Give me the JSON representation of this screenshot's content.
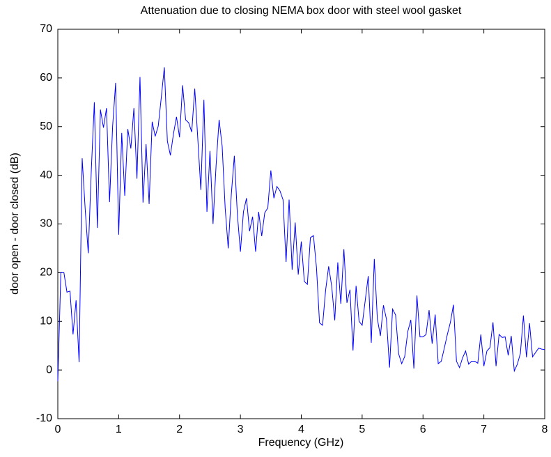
{
  "chart_data": {
    "type": "line",
    "title": "Attenuation due to closing NEMA box door with steel wool gasket",
    "xlabel": "Frequency (GHz)",
    "ylabel": "door open - door closed (dB)",
    "xlim": [
      0,
      8
    ],
    "ylim": [
      -10,
      70
    ],
    "xticks": [
      0,
      1,
      2,
      3,
      4,
      5,
      6,
      7,
      8
    ],
    "yticks": [
      -10,
      0,
      10,
      20,
      30,
      40,
      50,
      60,
      70
    ],
    "grid": false,
    "series": [
      {
        "name": "attenuation",
        "color": "#0000ff",
        "x": [
          0,
          0.05,
          0.1,
          0.15,
          0.2,
          0.25,
          0.3,
          0.35,
          0.4,
          0.45,
          0.5,
          0.55,
          0.6,
          0.65,
          0.7,
          0.75,
          0.8,
          0.85,
          0.9,
          0.95,
          1,
          1.05,
          1.1,
          1.15,
          1.2,
          1.25,
          1.3,
          1.35,
          1.4,
          1.45,
          1.5,
          1.55,
          1.6,
          1.65,
          1.7,
          1.75,
          1.8,
          1.85,
          1.9,
          1.95,
          2,
          2.05,
          2.1,
          2.15,
          2.2,
          2.25,
          2.3,
          2.35,
          2.4,
          2.45,
          2.5,
          2.55,
          2.6,
          2.65,
          2.7,
          2.75,
          2.8,
          2.85,
          2.9,
          2.95,
          3,
          3.05,
          3.1,
          3.15,
          3.2,
          3.25,
          3.3,
          3.35,
          3.4,
          3.45,
          3.5,
          3.55,
          3.6,
          3.65,
          3.7,
          3.75,
          3.8,
          3.85,
          3.9,
          3.95,
          4,
          4.05,
          4.1,
          4.15,
          4.2,
          4.25,
          4.3,
          4.35,
          4.4,
          4.45,
          4.5,
          4.55,
          4.6,
          4.65,
          4.7,
          4.75,
          4.8,
          4.85,
          4.9,
          4.95,
          5,
          5.05,
          5.1,
          5.15,
          5.2,
          5.25,
          5.3,
          5.35,
          5.4,
          5.45,
          5.5,
          5.55,
          5.6,
          5.65,
          5.7,
          5.75,
          5.8,
          5.85,
          5.9,
          5.95,
          6,
          6.05,
          6.1,
          6.15,
          6.2,
          6.25,
          6.3,
          6.35,
          6.4,
          6.45,
          6.5,
          6.55,
          6.6,
          6.65,
          6.7,
          6.75,
          6.8,
          6.85,
          6.9,
          6.95,
          7,
          7.05,
          7.1,
          7.15,
          7.2,
          7.25,
          7.3,
          7.35,
          7.4,
          7.45,
          7.5,
          7.55,
          7.6,
          7.65,
          7.7,
          7.75,
          7.8,
          7.85,
          7.9,
          7.95,
          8
        ],
        "values": [
          -2.3,
          20,
          20,
          16,
          16.2,
          7.3,
          14.3,
          1.6,
          43.5,
          33,
          24,
          41,
          55,
          29.2,
          53.5,
          49.8,
          53.8,
          34.5,
          50,
          59,
          27.8,
          48.7,
          35.8,
          49.5,
          45.5,
          53.8,
          39.3,
          60.2,
          34.4,
          46.4,
          34.1,
          51,
          48,
          50.1,
          56,
          62.2,
          47,
          44.1,
          48.5,
          52,
          47.8,
          58.5,
          51.4,
          50.8,
          48.9,
          57.8,
          47.5,
          37,
          55.5,
          32.5,
          45,
          30,
          42,
          51.4,
          46,
          33.2,
          25,
          36,
          44,
          32,
          24.3,
          32.5,
          35.3,
          28.5,
          31.5,
          24.3,
          32.5,
          27.5,
          32.3,
          33.3,
          41,
          35.3,
          37.7,
          36.8,
          35,
          22.2,
          35,
          20.6,
          30.3,
          19.6,
          26.4,
          18.2,
          17.6,
          27.2,
          27.6,
          21,
          9.7,
          9.2,
          16.4,
          21.3,
          17.2,
          10.2,
          22.1,
          13.6,
          24.8,
          13.8,
          16.5,
          4,
          17.3,
          10,
          9.2,
          14.2,
          19.3,
          5.6,
          22.8,
          10.5,
          7,
          13.3,
          10.4,
          0.5,
          12.5,
          11.3,
          3.3,
          1.3,
          2.8,
          7.9,
          10.3,
          0.3,
          15.3,
          6.8,
          6.8,
          7.3,
          12.3,
          5.4,
          11.4,
          1.3,
          1.8,
          4.5,
          7.3,
          9.8,
          13.4,
          1.8,
          0.5,
          2.5,
          3.9,
          1.2,
          1.8,
          1.8,
          1.4,
          7.3,
          0.8,
          3.9,
          4.6,
          9.8,
          0.8,
          7.3,
          6.7,
          6.8,
          3,
          7,
          -0.2,
          1.2,
          3.4,
          11.2,
          2.6,
          9.6,
          2.7,
          3.6,
          4.5,
          4.3,
          4.2
        ]
      }
    ]
  }
}
